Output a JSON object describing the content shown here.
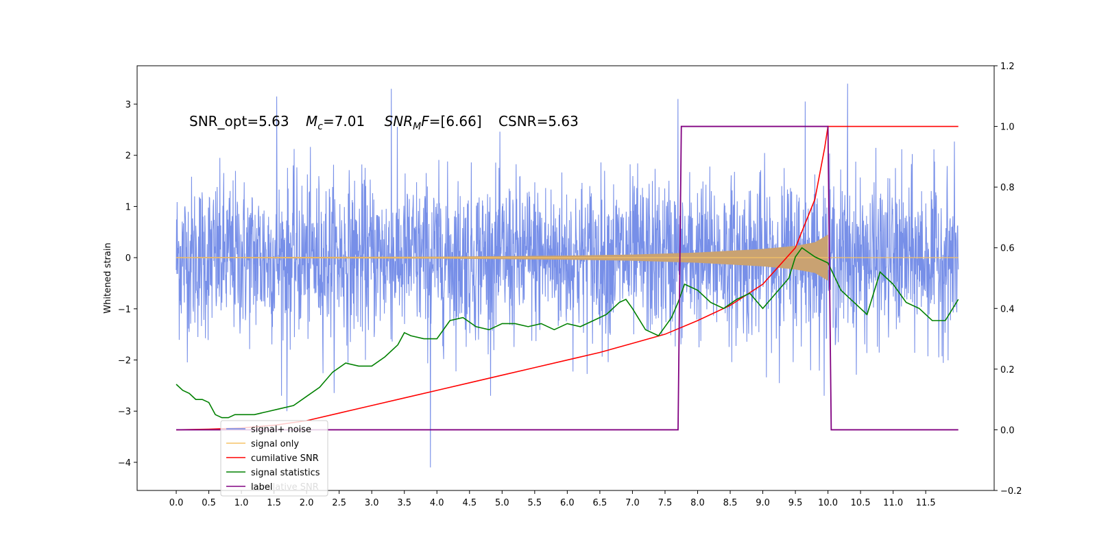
{
  "chart_data": {
    "type": "line",
    "title": "",
    "ylabel": "Whitened strain",
    "xlabel": "",
    "xlim": [
      -0.6,
      12.55
    ],
    "ylim": [
      -4.55,
      3.75
    ],
    "y2lim": [
      -0.2,
      1.2
    ],
    "x_ticks": [
      "0.0",
      "0.5",
      "1.0",
      "1.5",
      "2.0",
      "2.5",
      "3.0",
      "3.5",
      "4.0",
      "4.5",
      "5.0",
      "5.5",
      "6.0",
      "6.5",
      "7.0",
      "7.5",
      "8.0",
      "8.5",
      "9.0",
      "9.5",
      "10.0",
      "10.5",
      "11.0",
      "11.5"
    ],
    "y_ticks": [
      "3",
      "2",
      "1",
      "0",
      "−1",
      "−2",
      "−3",
      "−4"
    ],
    "y2_ticks": [
      "1.2",
      "1.0",
      "0.8",
      "0.6",
      "0.4",
      "0.2",
      "0.0",
      "−0.2"
    ],
    "annotation": {
      "snr_opt": "SNR_opt=5.63",
      "mc_sym": "M",
      "mc_sub": "c",
      "mc_val": "=7.01",
      "snrmf_sym": "SNR",
      "snrmf_sub": "M",
      "snrmf_f": "F",
      "snrmf_val": "=[6.66]",
      "csnr": "CSNR=5.63"
    },
    "colors": {
      "signal_noise": "#6b86e6",
      "signal_only": "#f5c266",
      "cumulative": "#ff0000",
      "statistics": "#008000",
      "label": "#800080"
    },
    "series": [
      {
        "name": "signal+ noise",
        "axis": "left",
        "x_range": [
          0.0,
          12.0
        ],
        "y_range_approx": [
          -4.1,
          3.4
        ],
        "spikes": [
          {
            "x": 1.54,
            "y": 3.15
          },
          {
            "x": 3.3,
            "y": 3.3
          },
          {
            "x": 3.9,
            "y": -4.1
          },
          {
            "x": 7.7,
            "y": 3.1
          },
          {
            "x": 9.65,
            "y": 3.05
          },
          {
            "x": 10.3,
            "y": 3.4
          },
          {
            "x": 1.7,
            "y": -3.0
          }
        ]
      },
      {
        "name": "signal only",
        "axis": "left",
        "chirp_end": 10.0,
        "envelope": [
          [
            0.0,
            0.01
          ],
          [
            2.0,
            0.015
          ],
          [
            4.0,
            0.02
          ],
          [
            6.0,
            0.04
          ],
          [
            7.0,
            0.06
          ],
          [
            8.0,
            0.1
          ],
          [
            9.0,
            0.17
          ],
          [
            9.5,
            0.23
          ],
          [
            9.8,
            0.3
          ],
          [
            10.0,
            0.45
          ]
        ]
      },
      {
        "name": "cumilative SNR",
        "axis": "right",
        "x": [
          0.0,
          0.5,
          1.0,
          1.5,
          2.0,
          2.5,
          3.0,
          3.5,
          4.0,
          4.5,
          5.0,
          5.5,
          6.0,
          6.5,
          7.0,
          7.5,
          8.0,
          8.5,
          9.0,
          9.5,
          9.8,
          9.95,
          10.0,
          10.01,
          12.0
        ],
        "y": [
          0.0,
          0.002,
          0.006,
          0.015,
          0.03,
          0.055,
          0.08,
          0.105,
          0.13,
          0.155,
          0.18,
          0.205,
          0.23,
          0.255,
          0.285,
          0.315,
          0.36,
          0.41,
          0.48,
          0.6,
          0.76,
          0.93,
          1.0,
          1.0,
          1.0
        ]
      },
      {
        "name": "signal statistics",
        "axis": "right",
        "x": [
          0.0,
          0.1,
          0.2,
          0.3,
          0.4,
          0.5,
          0.6,
          0.7,
          0.8,
          0.9,
          1.0,
          1.2,
          1.4,
          1.6,
          1.8,
          2.0,
          2.2,
          2.4,
          2.6,
          2.8,
          3.0,
          3.2,
          3.4,
          3.5,
          3.6,
          3.8,
          4.0,
          4.2,
          4.4,
          4.6,
          4.8,
          5.0,
          5.2,
          5.4,
          5.6,
          5.8,
          6.0,
          6.2,
          6.4,
          6.6,
          6.8,
          6.9,
          7.0,
          7.2,
          7.4,
          7.6,
          7.7,
          7.8,
          8.0,
          8.2,
          8.4,
          8.6,
          8.8,
          9.0,
          9.2,
          9.4,
          9.5,
          9.6,
          9.8,
          10.0,
          10.2,
          10.4,
          10.6,
          10.8,
          11.0,
          11.2,
          11.4,
          11.6,
          11.8,
          12.0
        ],
        "y": [
          0.15,
          0.13,
          0.12,
          0.1,
          0.1,
          0.09,
          0.05,
          0.04,
          0.04,
          0.05,
          0.05,
          0.05,
          0.06,
          0.07,
          0.08,
          0.11,
          0.14,
          0.19,
          0.22,
          0.21,
          0.21,
          0.24,
          0.28,
          0.32,
          0.31,
          0.3,
          0.3,
          0.36,
          0.37,
          0.34,
          0.33,
          0.35,
          0.35,
          0.34,
          0.35,
          0.33,
          0.35,
          0.34,
          0.36,
          0.38,
          0.42,
          0.43,
          0.4,
          0.33,
          0.31,
          0.37,
          0.42,
          0.48,
          0.46,
          0.42,
          0.4,
          0.43,
          0.45,
          0.4,
          0.45,
          0.5,
          0.57,
          0.6,
          0.57,
          0.55,
          0.46,
          0.42,
          0.38,
          0.52,
          0.48,
          0.42,
          0.4,
          0.36,
          0.36,
          0.43
        ]
      },
      {
        "name": "label",
        "axis": "right",
        "x": [
          0.0,
          7.7,
          7.75,
          10.0,
          10.05,
          12.0
        ],
        "y": [
          0.0,
          0.0,
          1.0,
          1.0,
          0.0,
          0.0
        ]
      }
    ],
    "legend": {
      "placement": "lower-left",
      "entries": [
        "signal+ noise",
        "signal only",
        "cumilative SNR",
        "signal statistics",
        "label"
      ],
      "ghost_text": "cumilative SNR"
    }
  }
}
